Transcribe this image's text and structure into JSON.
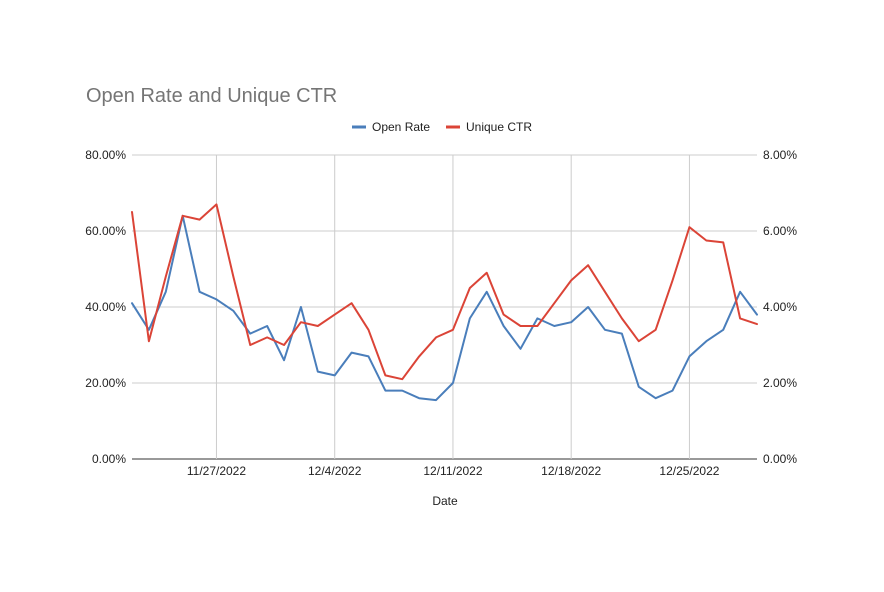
{
  "chart_data": {
    "type": "line",
    "title": "Open Rate and Unique CTR",
    "xlabel": "Date",
    "ylabel": "",
    "ylabel_right": "",
    "x_ticks": [
      "11/27/2022",
      "12/4/2022",
      "12/11/2022",
      "12/18/2022",
      "12/25/2022"
    ],
    "x_range": [
      "11/22/2022",
      "12/29/2022"
    ],
    "ylim": [
      0,
      0.8
    ],
    "ylim_right": [
      0,
      0.08
    ],
    "y_ticks_left": [
      "0.00%",
      "20.00%",
      "40.00%",
      "60.00%",
      "80.00%"
    ],
    "y_ticks_right": [
      "0.00%",
      "2.00%",
      "4.00%",
      "6.00%",
      "8.00%"
    ],
    "grid": true,
    "legend_position": "top",
    "dates": [
      "11/22/2022",
      "11/23/2022",
      "11/24/2022",
      "11/25/2022",
      "11/26/2022",
      "11/27/2022",
      "11/28/2022",
      "11/29/2022",
      "11/30/2022",
      "12/1/2022",
      "12/2/2022",
      "12/3/2022",
      "12/4/2022",
      "12/5/2022",
      "12/6/2022",
      "12/7/2022",
      "12/8/2022",
      "12/9/2022",
      "12/10/2022",
      "12/11/2022",
      "12/12/2022",
      "12/13/2022",
      "12/14/2022",
      "12/15/2022",
      "12/16/2022",
      "12/17/2022",
      "12/18/2022",
      "12/19/2022",
      "12/20/2022",
      "12/21/2022",
      "12/22/2022",
      "12/23/2022",
      "12/24/2022",
      "12/25/2022",
      "12/26/2022",
      "12/27/2022",
      "12/28/2022",
      "12/29/2022"
    ],
    "series": [
      {
        "name": "Open Rate",
        "axis": "left",
        "color": "#4a7ebb",
        "values": [
          0.41,
          0.34,
          0.44,
          0.64,
          0.44,
          0.42,
          0.39,
          0.33,
          0.35,
          0.26,
          0.4,
          0.23,
          0.22,
          0.28,
          0.27,
          0.18,
          0.18,
          0.16,
          0.155,
          0.2,
          0.37,
          0.44,
          0.35,
          0.29,
          0.37,
          0.35,
          0.36,
          0.4,
          0.34,
          0.33,
          0.19,
          0.16,
          0.18,
          0.27,
          0.31,
          0.34,
          0.44,
          0.38
        ]
      },
      {
        "name": "Unique CTR",
        "axis": "right",
        "color": "#db4437",
        "values": [
          0.065,
          0.031,
          0.048,
          0.064,
          0.063,
          0.067,
          0.048,
          0.03,
          0.032,
          0.03,
          0.036,
          0.035,
          0.038,
          0.041,
          0.034,
          0.022,
          0.021,
          0.027,
          0.032,
          0.034,
          0.045,
          0.049,
          0.038,
          0.035,
          0.035,
          0.041,
          0.047,
          0.051,
          0.044,
          0.037,
          0.031,
          0.034,
          0.047,
          0.061,
          0.0575,
          0.057,
          0.037,
          0.0355
        ]
      }
    ]
  }
}
